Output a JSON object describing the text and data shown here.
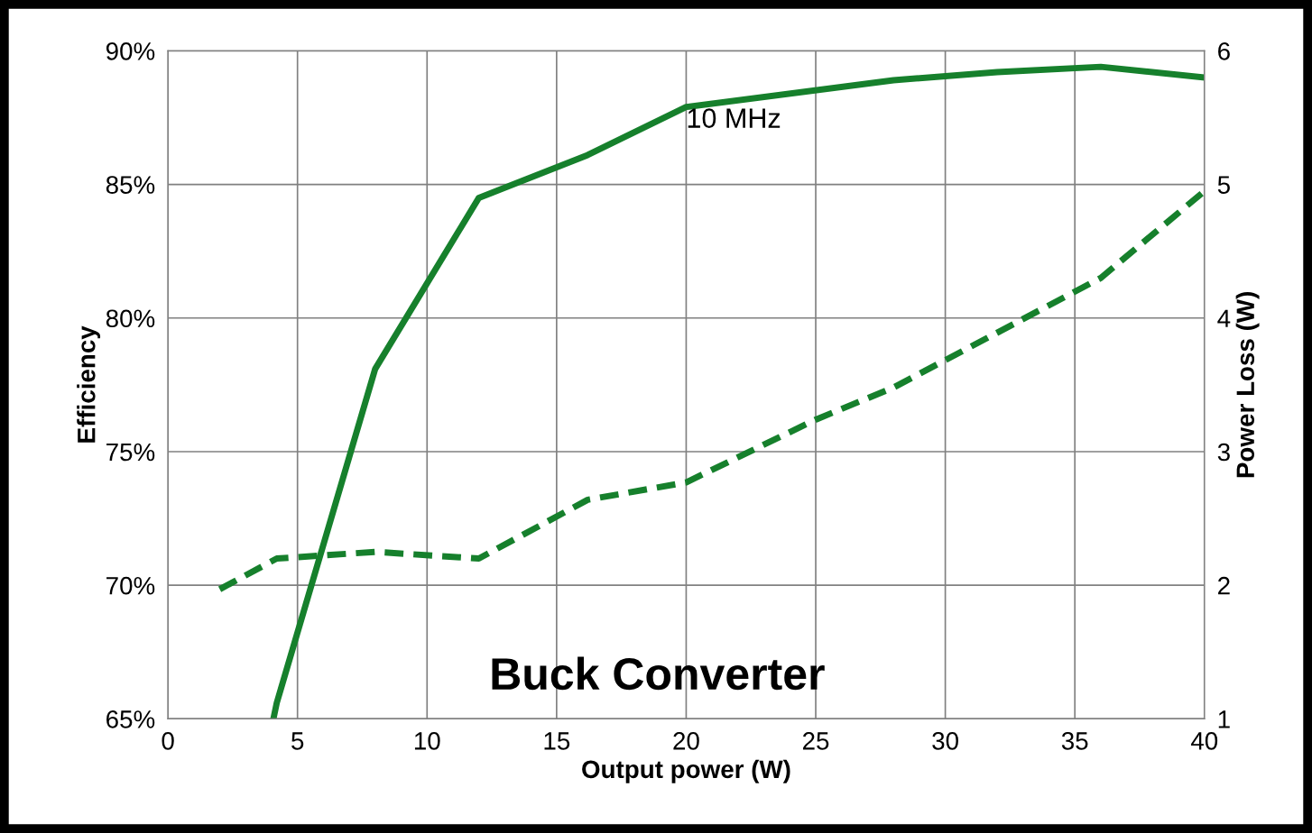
{
  "chart_data": {
    "type": "line",
    "xlabel": "Output power (W)",
    "ylabel": "Efficiency",
    "y2label": "Power Loss (W)",
    "xlim": [
      0,
      40
    ],
    "xticks": [
      0,
      5,
      10,
      15,
      20,
      25,
      30,
      35,
      40
    ],
    "ylim": [
      65,
      90
    ],
    "yticks": [
      {
        "value": 65,
        "label": "65%"
      },
      {
        "value": 70,
        "label": "70%"
      },
      {
        "value": 75,
        "label": "75%"
      },
      {
        "value": 80,
        "label": "80%"
      },
      {
        "value": 85,
        "label": "85%"
      },
      {
        "value": 90,
        "label": "90%"
      }
    ],
    "y2lim": [
      1,
      6
    ],
    "y2ticks": [
      1,
      2,
      3,
      4,
      5,
      6
    ],
    "grid": true,
    "annotations": [
      {
        "text": "10 MHz",
        "x": 20,
        "y": 87.87
      },
      "Buck Converter"
    ],
    "series": [
      {
        "color": "#16802c",
        "line_style": "solid",
        "x": [
          4.07,
          4.2,
          8,
          12,
          16.2,
          20,
          28,
          32,
          36,
          40
        ],
        "values": [
          65,
          65.6,
          78.1,
          84.5,
          86.1,
          87.9,
          88.9,
          89.2,
          89.4,
          89.0
        ]
      },
      {
        "color": "#16802c",
        "line_style": "dashed",
        "axis": "y2",
        "x": [
          2,
          4.2,
          8,
          12,
          16.2,
          20,
          25,
          28,
          32,
          36,
          40
        ],
        "values": [
          1.97,
          2.2,
          2.25,
          2.2,
          2.64,
          2.77,
          3.24,
          3.48,
          3.89,
          4.3,
          4.95
        ]
      }
    ]
  }
}
